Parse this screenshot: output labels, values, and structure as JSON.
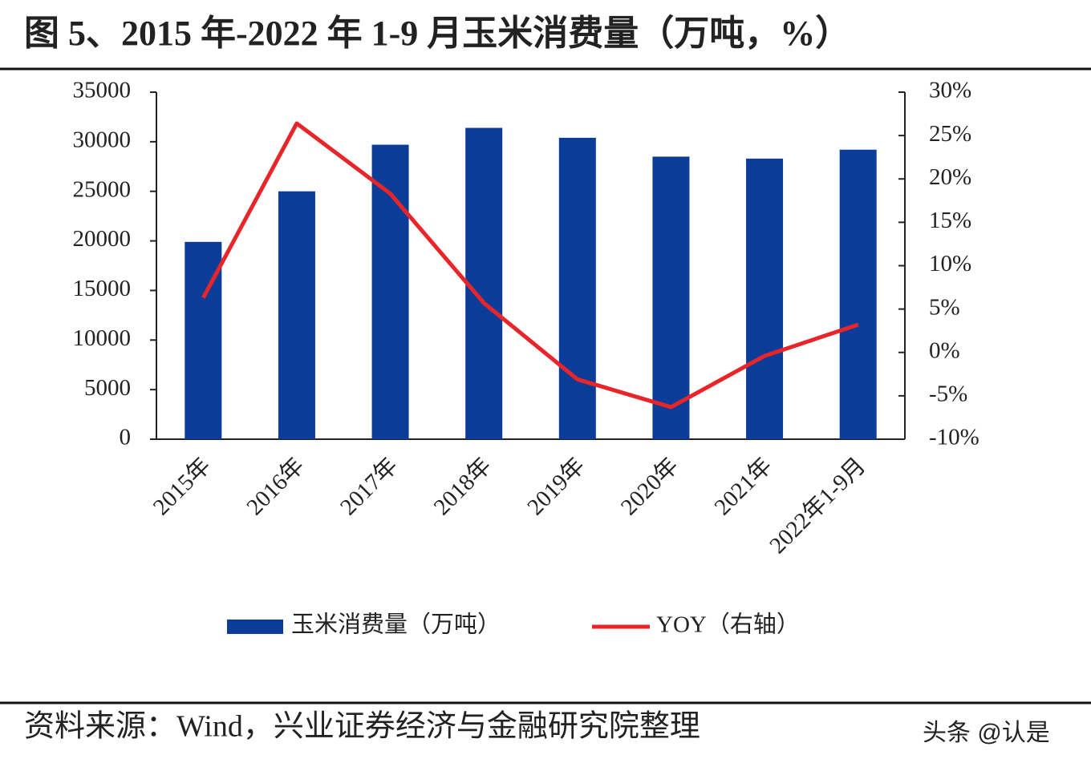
{
  "chart_data": {
    "type": "bar_line",
    "title": "图 5、2015 年-2022 年 1-9 月玉米消费量（万吨，%）",
    "categories": [
      "2015年",
      "2016年",
      "2017年",
      "2018年",
      "2019年",
      "2020年",
      "2021年",
      "2022年1-9月"
    ],
    "series": [
      {
        "name": "玉米消费量（万吨）",
        "type": "bar",
        "color": "#0b3d98",
        "values": [
          19900,
          25000,
          29700,
          31400,
          30400,
          28500,
          28300,
          29200
        ]
      },
      {
        "name": "YOY（右轴）",
        "type": "line",
        "axis": "y2",
        "color": "#e8262a",
        "values": [
          6.3,
          26.4,
          18.3,
          5.7,
          -3.1,
          -6.3,
          -0.4,
          3.2
        ]
      }
    ],
    "ylim": [
      0,
      35000
    ],
    "yticks": [
      0,
      5000,
      10000,
      15000,
      20000,
      25000,
      30000,
      35000
    ],
    "y2lim": [
      -10,
      30
    ],
    "y2ticks": [
      {
        "value": -10,
        "label": "-10%"
      },
      {
        "value": -5,
        "label": "-5%"
      },
      {
        "value": 0,
        "label": "0%"
      },
      {
        "value": 5,
        "label": "5%"
      },
      {
        "value": 10,
        "label": "10%"
      },
      {
        "value": 15,
        "label": "15%"
      },
      {
        "value": 20,
        "label": "20%"
      },
      {
        "value": 25,
        "label": "25%"
      },
      {
        "value": 30,
        "label": "30%"
      }
    ],
    "grid": false,
    "legend": "bottom",
    "source": "资料来源：Wind，兴业证券经济与金融研究院整理",
    "watermark": "头条 @认是"
  }
}
